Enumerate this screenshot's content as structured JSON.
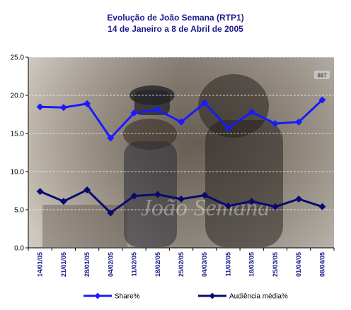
{
  "chart_data": {
    "type": "line",
    "title": "Evolução de João Semana (RTP1)",
    "subtitle": "14 de Janeiro a 8 de Abril de 2005",
    "categories": [
      "14/01/05",
      "21/01/05",
      "28/01/05",
      "04/02/05",
      "11/02/05",
      "18/02/05",
      "25/02/05",
      "04/03/05",
      "11/03/05",
      "18/03/05",
      "25/03/05",
      "01/04/05",
      "08/04/05"
    ],
    "series": [
      {
        "name": "Share%",
        "color": "#1a1aff",
        "values": [
          18.5,
          18.4,
          18.9,
          14.4,
          17.7,
          18.1,
          16.5,
          19.0,
          15.7,
          17.8,
          16.3,
          16.5,
          19.4
        ]
      },
      {
        "name": "Audiência média%",
        "color": "#0a0a6e",
        "values": [
          7.4,
          6.1,
          7.6,
          4.6,
          6.8,
          7.0,
          6.4,
          6.9,
          5.5,
          6.1,
          5.4,
          6.4,
          5.4
        ]
      }
    ],
    "ylim": [
      0,
      25
    ],
    "yticks": [
      "0.0",
      "5.0",
      "10.0",
      "15.0",
      "20.0",
      "25.0"
    ],
    "grid": true,
    "legend": "bottom"
  },
  "watermark_text": "João Semana",
  "logo_text": "887"
}
